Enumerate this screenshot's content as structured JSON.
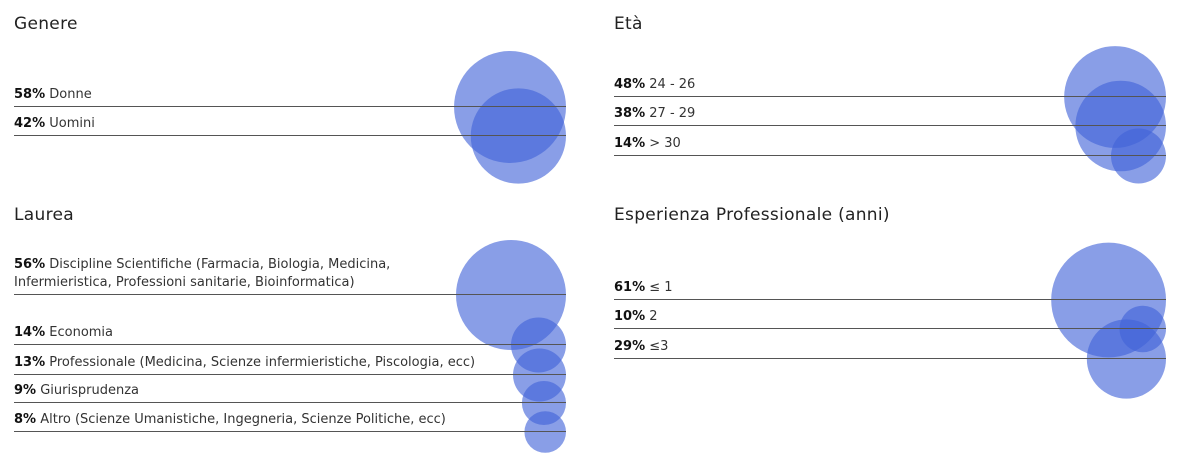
{
  "chart_data": [
    {
      "type": "bubble",
      "title": "Genere",
      "colors": {
        "bubble": "#4163d8"
      },
      "items": [
        {
          "percent": "58%",
          "label": "Donne",
          "value": 58
        },
        {
          "percent": "42%",
          "label": "Uomini",
          "value": 42
        }
      ]
    },
    {
      "type": "bubble",
      "title": "Età",
      "colors": {
        "bubble": "#4163d8"
      },
      "items": [
        {
          "percent": "48%",
          "label": "24 - 26",
          "value": 48
        },
        {
          "percent": "38%",
          "label": "27 - 29",
          "value": 38
        },
        {
          "percent": "14%",
          "label": "> 30",
          "value": 14
        }
      ]
    },
    {
      "type": "bubble",
      "title": "Laurea",
      "colors": {
        "bubble": "#4163d8"
      },
      "items": [
        {
          "percent": "56%",
          "label": "Discipline Scientifiche (Farmacia, Biologia, Medicina,\nInfermieristica, Professioni sanitarie, Bioinformatica)",
          "value": 56
        },
        {
          "percent": "14%",
          "label": "Economia",
          "value": 14
        },
        {
          "percent": "13%",
          "label": "Professionale (Medicina, Scienze infermieristiche, Piscologia, ecc)",
          "value": 13
        },
        {
          "percent": "9%",
          "label": "Giurisprudenza",
          "value": 9
        },
        {
          "percent": "8%",
          "label": "Altro (Scienze Umanistiche, Ingegneria, Scienze Politiche, ecc)",
          "value": 8
        }
      ]
    },
    {
      "type": "bubble",
      "title": "Esperienza Professionale (anni)",
      "colors": {
        "bubble": "#4163d8"
      },
      "items": [
        {
          "percent": "61%",
          "label": "≤ 1",
          "value": 61
        },
        {
          "percent": "10%",
          "label": "2",
          "value": 10
        },
        {
          "percent": "29%",
          "label": "≤3",
          "value": 29
        }
      ]
    }
  ]
}
